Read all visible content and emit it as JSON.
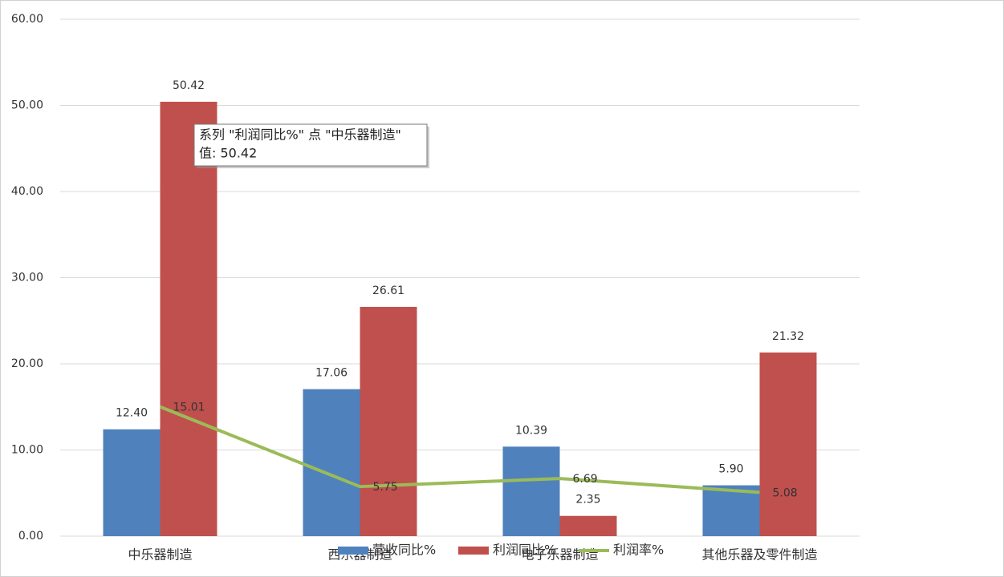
{
  "chart_data": {
    "type": "bar",
    "categories": [
      "中乐器制造",
      "西乐器制造",
      "电子乐器制造",
      "其他乐器及零件制造"
    ],
    "series": [
      {
        "name": "营收同比%",
        "type": "bar",
        "color": "#4f81bd",
        "values": [
          12.4,
          17.06,
          10.39,
          5.9
        ],
        "value_labels": [
          "12.40",
          "17.06",
          "10.39",
          "5.90"
        ]
      },
      {
        "name": "利润同比%",
        "type": "bar",
        "color": "#c0504d",
        "values": [
          50.42,
          26.61,
          2.35,
          21.32
        ],
        "value_labels": [
          "50.42",
          "26.61",
          "2.35",
          "21.32"
        ]
      },
      {
        "name": "利润率%",
        "type": "line",
        "color": "#9bbb59",
        "values": [
          15.01,
          5.75,
          6.69,
          5.08
        ],
        "value_labels": [
          "15.01",
          "5.75",
          "6.69",
          "5.08"
        ]
      }
    ],
    "ylim": [
      0,
      60
    ],
    "yticks": [
      {
        "value": 0,
        "label": "0.00"
      },
      {
        "value": 10,
        "label": "10.00"
      },
      {
        "value": 20,
        "label": "20.00"
      },
      {
        "value": 30,
        "label": "30.00"
      },
      {
        "value": 40,
        "label": "40.00"
      },
      {
        "value": 50,
        "label": "50.00"
      },
      {
        "value": 60,
        "label": "60.00"
      }
    ],
    "grid": true,
    "legend": "bottom",
    "tooltip": {
      "lines": [
        "系列 \"利润同比%\" 点 \"中乐器制造\"",
        "值: 50.42"
      ]
    }
  }
}
